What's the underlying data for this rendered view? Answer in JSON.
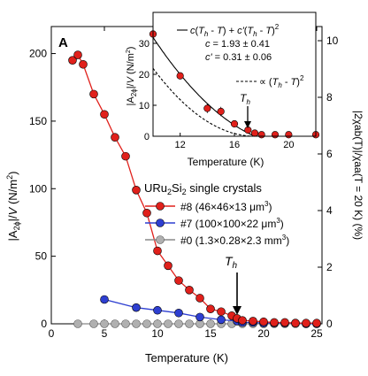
{
  "chart_data": [
    {
      "type": "scatter",
      "panel_label": "A",
      "xlabel": "Temperature (K)",
      "ylabel": "|A2ϕ|/V (N/m²)",
      "ylabel_parts": {
        "base": "|A",
        "sub": "2ϕ",
        "mid": "|/",
        "italic": "V",
        "tail": " (N/m",
        "sup": "2",
        "end": ")"
      },
      "y2label": "|2χab(T)|/χaa(T = 20 K) (%)",
      "xlim": [
        0,
        25.5
      ],
      "ylim": [
        0,
        220
      ],
      "y2lim": [
        0,
        10.5
      ],
      "xticks": [
        0,
        5,
        10,
        15,
        20,
        25
      ],
      "yticks": [
        0,
        50,
        100,
        150,
        200
      ],
      "y2ticks": [
        0,
        2,
        4,
        6,
        8,
        10
      ],
      "legend_title": "URu2Si2 single crystals",
      "legend_title_parts": {
        "a": "URu",
        "s1": "2",
        "b": "Si",
        "s2": "2",
        "c": " single crystals"
      },
      "series": [
        {
          "name": "#8 (46×46×13 μm³)",
          "color": "#e0201b",
          "x": [
            2.0,
            2.5,
            3.0,
            4.0,
            5.0,
            6.0,
            7.0,
            8.0,
            9.0,
            10.0,
            11.0,
            12.0,
            13.0,
            14.0,
            15.0,
            16.0,
            17.0,
            17.5,
            18.0,
            19.0,
            20.0,
            21.0,
            22.0,
            23.0,
            24.0,
            25.0
          ],
          "y": [
            195,
            199,
            192,
            170,
            155,
            138,
            124,
            99,
            82,
            54,
            43,
            32,
            25,
            19,
            11,
            9,
            6,
            4,
            2.5,
            2,
            1.5,
            1,
            1,
            0.5,
            0.5,
            0.5
          ]
        },
        {
          "name": "#7 (100×100×22 μm³)",
          "color": "#2e3fd1",
          "x": [
            5.0,
            8.0,
            10.0,
            12.0,
            14.0,
            16.0,
            17.5,
            18.0,
            19.0,
            20.0,
            21.0,
            22.0,
            23.0,
            24.0,
            25.0
          ],
          "y": [
            18,
            12,
            10,
            8,
            5,
            3,
            2,
            1,
            1,
            0.5,
            0.5,
            0.5,
            0.5,
            0,
            0
          ]
        },
        {
          "name": "#0 (1.3×0.28×2.3 mm³)",
          "color": "#b0b0b0",
          "x": [
            2.5,
            4.0,
            5.0,
            6.0,
            7.0,
            8.0,
            9.0,
            10.0,
            11.0,
            12.0,
            13.0,
            14.0,
            15.0,
            16.0,
            17.0,
            18.0,
            19.0,
            20.0,
            21.0,
            22.0,
            23.0,
            24.0,
            25.0
          ],
          "y": [
            0,
            0,
            0,
            0,
            0,
            0,
            0,
            0,
            0,
            0,
            0,
            0,
            0,
            0,
            0,
            0,
            0,
            0,
            0,
            0,
            0,
            0,
            0
          ]
        }
      ],
      "legend": [
        {
          "label_pre": "#8 (46×46×13 μm",
          "sup": "3",
          "label_post": ")"
        },
        {
          "label_pre": "#7 (100×100×22 μm",
          "sup": "3",
          "label_post": ")"
        },
        {
          "label_pre": "#0 (1.3×0.28×2.3 mm",
          "sup": "3",
          "label_post": ")"
        }
      ],
      "annotation": {
        "text": "Th",
        "main": "T",
        "sub": "h",
        "x": 17.5
      }
    },
    {
      "type": "scatter",
      "inset": true,
      "xlabel": "Temperature (K)",
      "ylabel": "|A2ϕ|/V (N/m²)",
      "ylabel_parts": {
        "base": "|A",
        "sub": "2ϕ",
        "mid": "|/",
        "italic": "V",
        "tail": " (N/m",
        "sup": "2",
        "end": ")"
      },
      "xlim": [
        10,
        22
      ],
      "ylim": [
        0,
        40
      ],
      "xticks": [
        12,
        16,
        20
      ],
      "yticks": [
        0,
        10,
        20,
        30
      ],
      "series": [
        {
          "name": "data",
          "color": "#e0201b",
          "x": [
            10.0,
            12.0,
            14.0,
            15.0,
            16.0,
            17.0,
            17.5,
            18.0,
            19.0,
            20.0,
            22.0
          ],
          "y": [
            33,
            19.5,
            9,
            8,
            4,
            2,
            1,
            0.5,
            0.5,
            0.5,
            0.5
          ],
          "yerr": [
            1.5,
            1,
            1.5,
            1.5,
            1,
            1,
            0.5,
            0.5,
            0.5,
            0.5,
            0.5
          ]
        }
      ],
      "fit_solid": {
        "c": 1.93,
        "c_prime": 0.31,
        "Th": 17.5
      },
      "fit_dashed": {
        "c2": 0.39,
        "Th": 17.5
      },
      "legend_lines": [
        "c(Th - T) + c'(Th - T)²",
        "c = 1.93 ± 0.41",
        "c' = 0.31 ± 0.06",
        "∝ (Th - T)²"
      ],
      "fit_text": {
        "l1": {
          "c": "c",
          "o": "(",
          "T1": "T",
          "h1": "h",
          "m1": " - ",
          "T2": "T",
          "p1": ") + ",
          "cp": "c'",
          "o2": "(",
          "T3": "T",
          "h2": "h",
          "m2": " - ",
          "T4": "T",
          "p2": ")",
          "sq": "2"
        },
        "l2": {
          "c": "c",
          "rest": " = 1.93 ± 0.41"
        },
        "l3": {
          "c": "c'",
          "rest": " = 0.31 ± 0.06"
        },
        "l4": {
          "pre": "∝ (",
          "T1": "T",
          "h": "h",
          "m": " - ",
          "T2": "T",
          "p": ")",
          "sq": "2"
        }
      },
      "annotation": {
        "text": "Th",
        "main": "T",
        "sub": "h",
        "x": 17.5
      }
    }
  ]
}
